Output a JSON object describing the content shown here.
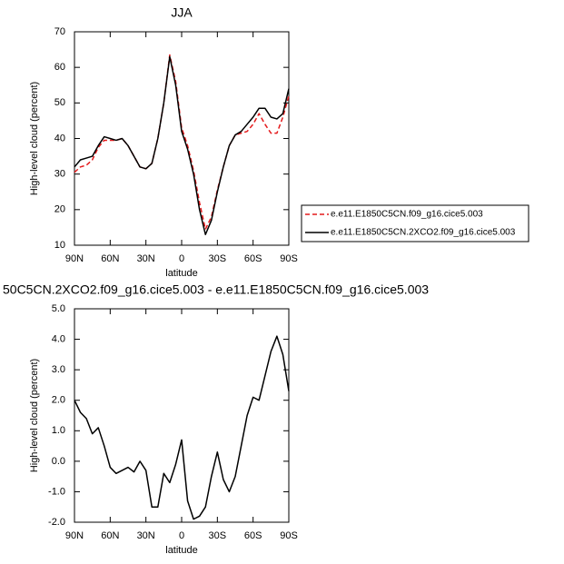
{
  "chart_data": [
    {
      "type": "line",
      "title": "JJA",
      "x_label": "latitude",
      "y_label": "High-level cloud (percent)",
      "x": [
        90,
        85,
        80,
        75,
        70,
        65,
        60,
        55,
        50,
        45,
        40,
        35,
        30,
        25,
        20,
        15,
        10,
        5,
        0,
        -5,
        -10,
        -15,
        -20,
        -25,
        -30,
        -35,
        -40,
        -45,
        -50,
        -55,
        -60,
        -65,
        -70,
        -75,
        -80,
        -85,
        -90
      ],
      "xlim": [
        90,
        -90
      ],
      "xticks": [
        {
          "value": 90,
          "label": "90N"
        },
        {
          "value": 60,
          "label": "60N"
        },
        {
          "value": 30,
          "label": "30N"
        },
        0,
        {
          "value": -30,
          "label": "30S"
        },
        {
          "value": -60,
          "label": "60S"
        },
        {
          "value": -90,
          "label": "90S"
        }
      ],
      "ylim": [
        10,
        70
      ],
      "yticks": [
        10,
        20,
        30,
        40,
        50,
        60,
        70
      ],
      "series": [
        {
          "name": "e.e11.E1850C5CN.f09_g16.cice5.003",
          "color": "#e41a1c",
          "line_style": "dashed",
          "values": [
            30.5,
            32,
            32.5,
            34,
            37.5,
            39.5,
            39.5,
            39.5,
            40,
            38,
            35,
            32,
            31.5,
            33,
            40,
            50,
            63.5,
            56,
            43,
            38,
            31,
            22,
            14.5,
            18,
            25.5,
            32,
            38,
            41,
            41.5,
            42,
            44,
            47,
            44,
            41.5,
            41.5,
            46,
            52
          ]
        },
        {
          "name": "e.e11.E1850C5CN.2XCO2.f09_g16.cice5.003",
          "color": "#000000",
          "line_style": "solid",
          "values": [
            32,
            34,
            34.5,
            35,
            38,
            40.5,
            40,
            39.5,
            40,
            38,
            35,
            32,
            31.5,
            33,
            40,
            50,
            63,
            55,
            42,
            37,
            30,
            20,
            13,
            17,
            25,
            32,
            38,
            41,
            42,
            44,
            46,
            48.5,
            48.5,
            46,
            45.5,
            47,
            54
          ]
        }
      ]
    },
    {
      "type": "line",
      "title": "50C5CN.2XCO2.f09_g16.cice5.003 - e.e11.E1850C5CN.f09_g16.cice5.003",
      "x_label": "latitude",
      "y_label": "High-level cloud (percent)",
      "x": [
        90,
        85,
        80,
        75,
        70,
        65,
        60,
        55,
        50,
        45,
        40,
        35,
        30,
        25,
        20,
        15,
        10,
        5,
        0,
        -5,
        -10,
        -15,
        -20,
        -25,
        -30,
        -35,
        -40,
        -45,
        -50,
        -55,
        -60,
        -65,
        -70,
        -75,
        -80,
        -85,
        -90
      ],
      "xlim": [
        90,
        -90
      ],
      "xticks": [
        {
          "value": 90,
          "label": "90N"
        },
        {
          "value": 60,
          "label": "60N"
        },
        {
          "value": 30,
          "label": "30N"
        },
        0,
        {
          "value": -30,
          "label": "30S"
        },
        {
          "value": -60,
          "label": "60S"
        },
        {
          "value": -90,
          "label": "90S"
        }
      ],
      "ylim": [
        -2,
        5
      ],
      "yticks": [
        {
          "value": -2,
          "label": "-2.0"
        },
        {
          "value": -1,
          "label": "-1.0"
        },
        {
          "value": 0,
          "label": "0.0"
        },
        {
          "value": 1,
          "label": "1.0"
        },
        {
          "value": 2,
          "label": "2.0"
        },
        {
          "value": 3,
          "label": "3.0"
        },
        {
          "value": 4,
          "label": "4.0"
        },
        {
          "value": 5,
          "label": "5.0"
        }
      ],
      "series": [
        {
          "color": "#000000",
          "line_style": "solid",
          "values": [
            2.0,
            1.6,
            1.4,
            0.9,
            1.1,
            0.5,
            -0.2,
            -0.4,
            -0.3,
            -0.2,
            -0.35,
            0.0,
            -0.3,
            -1.5,
            -1.5,
            -0.4,
            -0.7,
            -0.1,
            0.7,
            -1.3,
            -1.9,
            -1.8,
            -1.5,
            -0.5,
            0.3,
            -0.6,
            -1.0,
            -0.5,
            0.5,
            1.5,
            2.1,
            2.0,
            2.8,
            3.6,
            4.1,
            3.5,
            2.3
          ]
        }
      ]
    }
  ]
}
